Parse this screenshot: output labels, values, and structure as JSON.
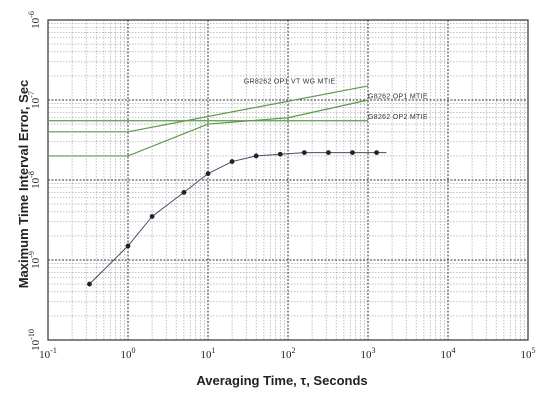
{
  "chart_data": {
    "type": "line",
    "xscale": "log",
    "yscale": "log",
    "xlabel": "Averaging Time, τ, Seconds",
    "ylabel": "Maximum Time Interval Error, Sec",
    "xlim": [
      0.1,
      100000
    ],
    "ylim": [
      1e-10,
      1e-06
    ],
    "grid": true,
    "x_ticks": [
      {
        "value": 0.1,
        "base": "10",
        "exp": "-1"
      },
      {
        "value": 1,
        "base": "10",
        "exp": "0"
      },
      {
        "value": 10,
        "base": "10",
        "exp": "1"
      },
      {
        "value": 100,
        "base": "10",
        "exp": "2"
      },
      {
        "value": 1000,
        "base": "10",
        "exp": "3"
      },
      {
        "value": 10000,
        "base": "10",
        "exp": "4"
      },
      {
        "value": 100000,
        "base": "10",
        "exp": "5"
      }
    ],
    "y_ticks": [
      {
        "value": 1e-10,
        "base": "10",
        "exp": "-10"
      },
      {
        "value": 1e-09,
        "base": "10",
        "exp": "-9"
      },
      {
        "value": 1e-08,
        "base": "10",
        "exp": "-8"
      },
      {
        "value": 1e-07,
        "base": "10",
        "exp": "-7"
      },
      {
        "value": 1e-06,
        "base": "10",
        "exp": "-6"
      }
    ],
    "series": [
      {
        "name": "GR8262 OP1 VT WG MTIE",
        "color": "#5e9a4a",
        "x": [
          0.1,
          1,
          1000
        ],
        "y": [
          4e-08,
          4e-08,
          1.5e-07
        ]
      },
      {
        "name": "G8262 OP1 MTIE",
        "color": "#5e9a4a",
        "x": [
          0.1,
          1,
          10,
          100,
          1000
        ],
        "y": [
          2e-08,
          2e-08,
          5e-08,
          6e-08,
          1e-07
        ]
      },
      {
        "name": "G8262 OP2 MTIE",
        "color": "#5e9a4a",
        "x": [
          0.1,
          10,
          1000
        ],
        "y": [
          5.5e-08,
          5.5e-08,
          5.5e-08
        ]
      },
      {
        "color": "#4a4a6e",
        "markers": true,
        "x": [
          0.33,
          1,
          2,
          5,
          10,
          20,
          40,
          80,
          160,
          320,
          640,
          1280
        ],
        "y": [
          5e-10,
          1.5e-09,
          3.5e-09,
          7e-09,
          1.2e-08,
          1.7e-08,
          2e-08,
          2.1e-08,
          2.2e-08,
          2.2e-08,
          2.2e-08,
          2.2e-08
        ],
        "x_end": 1700
      }
    ],
    "annotations": [
      {
        "text": "GR8262 OP1 VT WG MTIE",
        "series": 0,
        "x": 28,
        "y": 1.6e-07
      },
      {
        "text": "G8262 OP1 MTIE",
        "series": 1,
        "x": 1000,
        "y": 1.05e-07
      },
      {
        "text": "G8262 OP2 MTIE",
        "series": 2,
        "x": 1000,
        "y": 5.8e-08
      }
    ]
  }
}
